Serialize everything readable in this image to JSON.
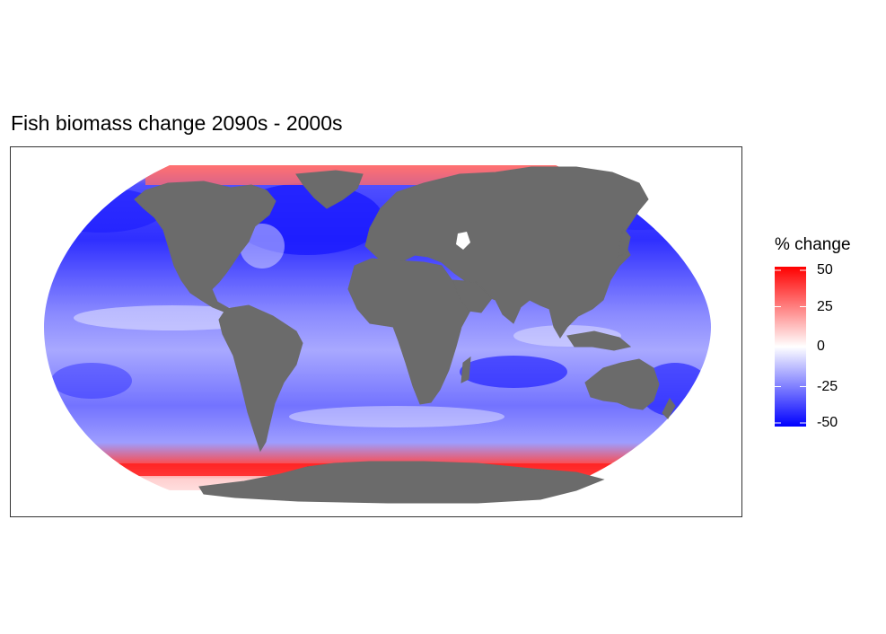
{
  "title": "Fish biomass change 2090s - 2000s",
  "colors": {
    "ocean_low": "#0000ff",
    "ocean_mid": "#ffffff",
    "ocean_high": "#ff0000",
    "land": "#6b6b6b",
    "panel_border": "#333333"
  },
  "legend": {
    "title": "% change",
    "ticks": [
      "50",
      "25",
      "0",
      "-25",
      "-50"
    ],
    "tick_values": [
      50,
      25,
      0,
      -25,
      -50
    ],
    "range": [
      -50,
      50
    ]
  }
}
